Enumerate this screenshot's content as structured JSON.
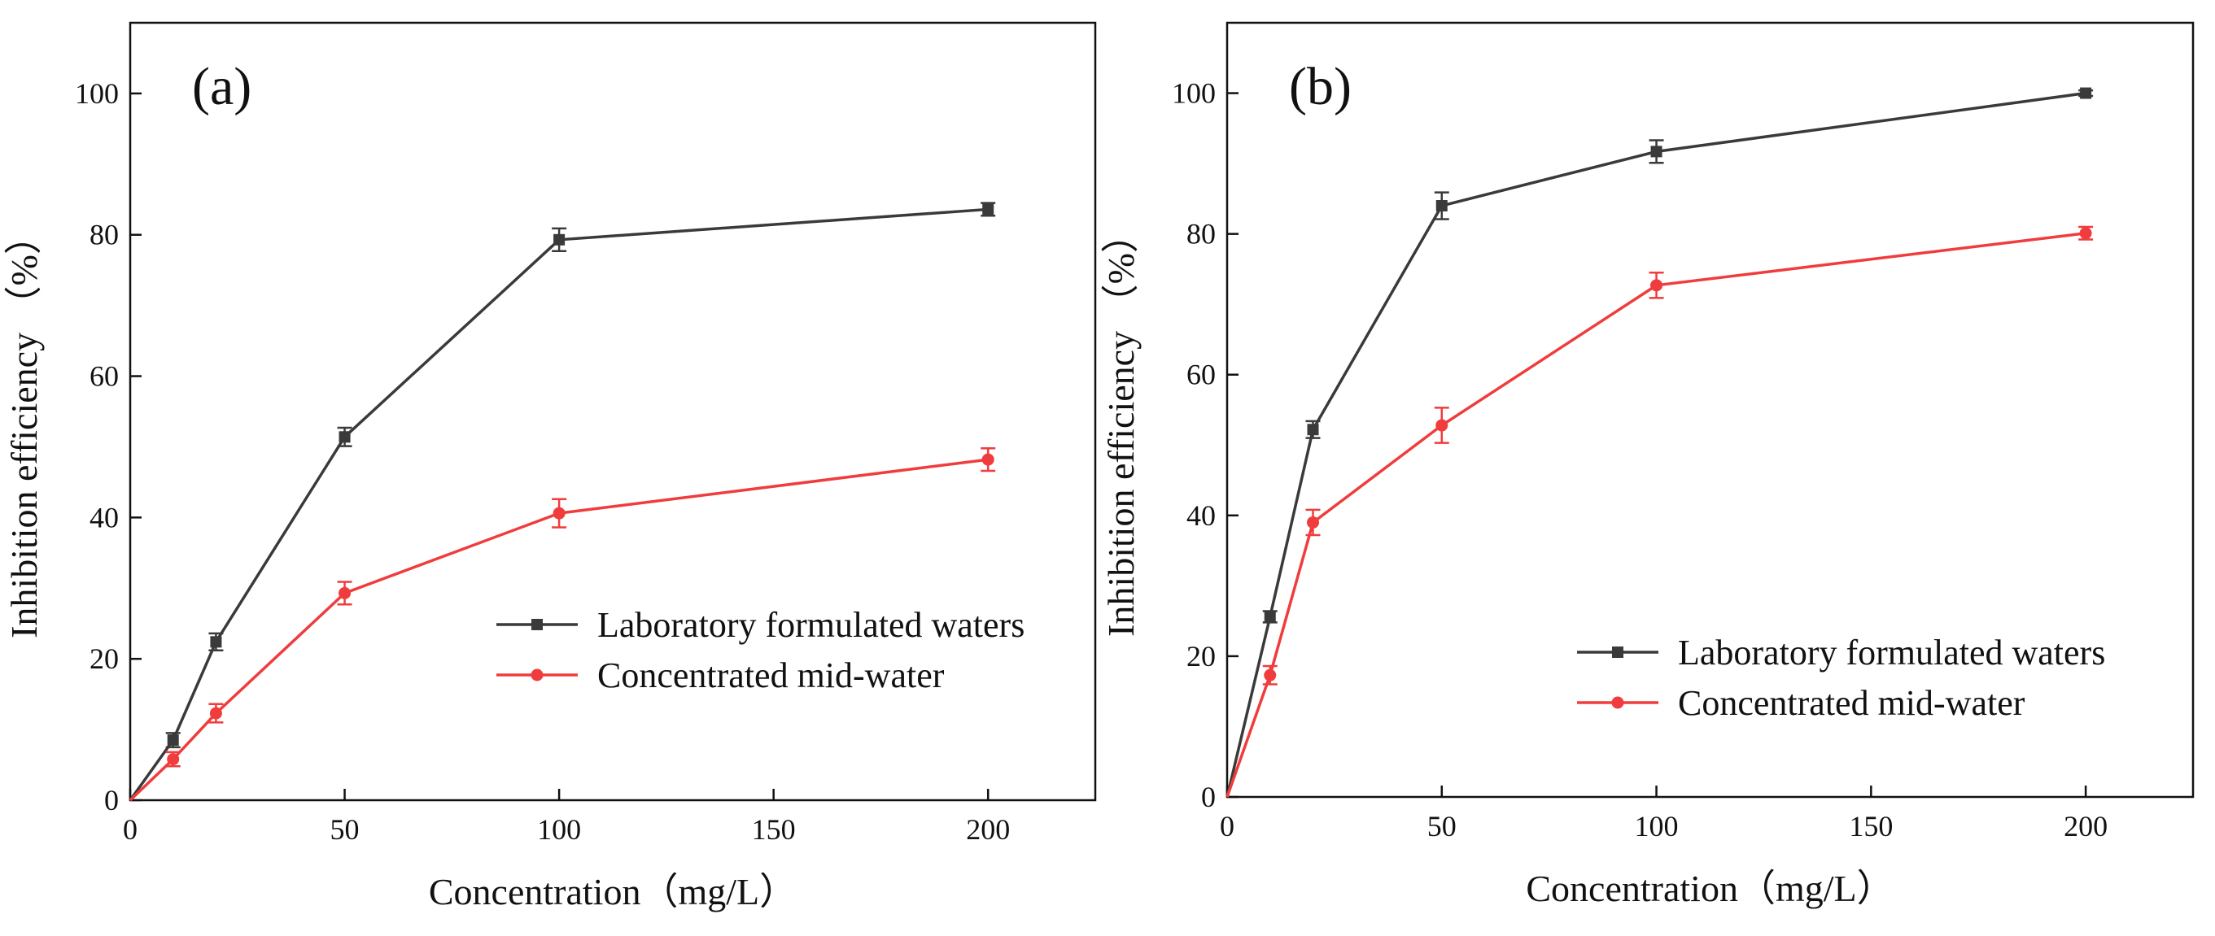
{
  "chart_data": [
    {
      "type": "line",
      "panel_label": "(a)",
      "xlabel": "Concentration（mg/L）",
      "ylabel": "Inhibition efficiency （%）",
      "xlim": [
        0,
        225
      ],
      "ylim": [
        0,
        110
      ],
      "x_ticks": [
        0,
        50,
        100,
        150,
        200
      ],
      "y_ticks": [
        0,
        20,
        40,
        60,
        80,
        100
      ],
      "grid": false,
      "legend_position": "lower-right",
      "series": [
        {
          "name": "Laboratory formulated waters",
          "color": "#3a3a3a",
          "marker": "square",
          "x": [
            0,
            10,
            20,
            50,
            100,
            200
          ],
          "y": [
            0,
            8.5,
            22.4,
            51.4,
            79.3,
            83.6
          ],
          "err": [
            0,
            1.0,
            1.2,
            1.3,
            1.6,
            0.9
          ]
        },
        {
          "name": "Concentrated mid-water",
          "color": "#f03c3c",
          "marker": "circle",
          "x": [
            0,
            10,
            20,
            50,
            100,
            200
          ],
          "y": [
            0,
            5.8,
            12.3,
            29.3,
            40.6,
            48.2
          ],
          "err": [
            0,
            1.0,
            1.3,
            1.6,
            2.0,
            1.6
          ]
        }
      ]
    },
    {
      "type": "line",
      "panel_label": "(b)",
      "xlabel": "Concentration（mg/L）",
      "ylabel": "Inhibition efficiency （%）",
      "xlim": [
        0,
        225
      ],
      "ylim": [
        0,
        110
      ],
      "x_ticks": [
        0,
        50,
        100,
        150,
        200
      ],
      "y_ticks": [
        0,
        20,
        40,
        60,
        80,
        100
      ],
      "grid": false,
      "legend_position": "lower-right",
      "series": [
        {
          "name": "Laboratory formulated waters",
          "color": "#3a3a3a",
          "marker": "square",
          "x": [
            0,
            10,
            20,
            50,
            100,
            200
          ],
          "y": [
            0,
            25.6,
            52.2,
            84.0,
            91.7,
            100.0
          ],
          "err": [
            0,
            0.8,
            1.2,
            1.9,
            1.6,
            0.4
          ]
        },
        {
          "name": "Concentrated mid-water",
          "color": "#f03c3c",
          "marker": "circle",
          "x": [
            0,
            10,
            20,
            50,
            100,
            200
          ],
          "y": [
            0,
            17.3,
            39.0,
            52.8,
            72.7,
            80.1
          ],
          "err": [
            0,
            1.3,
            1.8,
            2.5,
            1.8,
            0.9
          ]
        }
      ]
    }
  ]
}
